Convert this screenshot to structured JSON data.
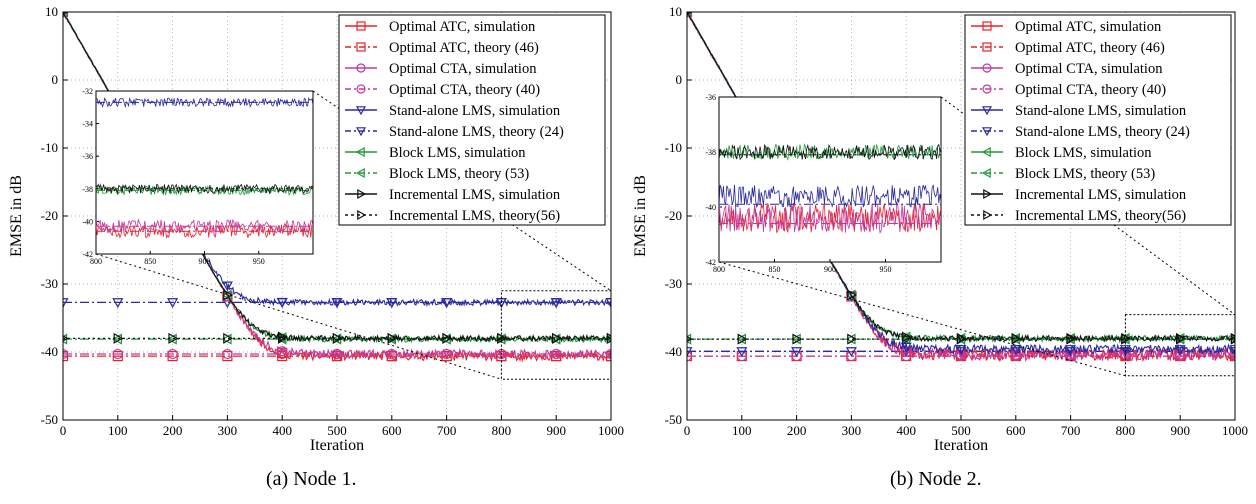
{
  "chart_data": [
    {
      "type": "line",
      "caption": "(a) Node 1.",
      "xlabel": "Iteration",
      "ylabel": "EMSE in dB",
      "xlim": [
        0,
        1000
      ],
      "ylim": [
        -50,
        10
      ],
      "xticks": [
        0,
        100,
        200,
        300,
        400,
        500,
        600,
        700,
        800,
        900,
        1000
      ],
      "yticks": [
        10,
        0,
        -10,
        -20,
        -30,
        -40,
        -50
      ],
      "grid": true,
      "legend_position": "top-right",
      "series": [
        {
          "name": "Optimal ATC, simulation",
          "color": "#e8202a",
          "dash": "solid",
          "marker": "square",
          "start": 10,
          "final": -40.6,
          "tau": 80,
          "delay": 0,
          "noise": 0.45
        },
        {
          "name": "Optimal ATC, theory (46)",
          "color": "#e8202a",
          "dash": "dashdot",
          "marker": "square",
          "final": -40.6,
          "flat": true
        },
        {
          "name": "Optimal CTA, simulation",
          "color": "#c23a9a",
          "dash": "solid",
          "marker": "circle",
          "start": 10,
          "final": -40.3,
          "tau": 80,
          "delay": 0,
          "noise": 0.45
        },
        {
          "name": "Optimal CTA, theory (40)",
          "color": "#c23a9a",
          "dash": "dashdot",
          "marker": "circle",
          "final": -40.3,
          "flat": true
        },
        {
          "name": "Stand-alone LMS, simulation",
          "color": "#2a2aa0",
          "dash": "solid",
          "marker": "triangle-down",
          "start": 10,
          "final": -32.7,
          "tau": 70,
          "delay": 0,
          "noise": 0.3
        },
        {
          "name": "Stand-alone LMS, theory (24)",
          "color": "#2a2aa0",
          "dash": "dashdot",
          "marker": "triangle-down",
          "final": -32.7,
          "flat": true
        },
        {
          "name": "Block LMS, simulation",
          "color": "#1f9a3a",
          "dash": "solid",
          "marker": "triangle-left",
          "start": 10,
          "final": -38.1,
          "tau": 85,
          "delay": 0,
          "noise": 0.3
        },
        {
          "name": "Block LMS, theory (53)",
          "color": "#1f9a3a",
          "dash": "dashdot",
          "marker": "triangle-left",
          "final": -38.1,
          "flat": true
        },
        {
          "name": "Incremental LMS, simulation",
          "color": "#111111",
          "dash": "solid",
          "marker": "triangle-right",
          "start": 10,
          "final": -38.0,
          "tau": 85,
          "delay": 0,
          "noise": 0.3
        },
        {
          "name": "Incremental LMS, theory(56)",
          "color": "#111111",
          "dash": "dotted",
          "marker": "triangle-right",
          "final": -38.0,
          "flat": true
        }
      ],
      "inset": {
        "xlim": [
          800,
          1000
        ],
        "ylim": [
          -42,
          -32
        ],
        "xticks": [
          800,
          850,
          900,
          950
        ],
        "yticks": [
          -32,
          -34,
          -36,
          -38,
          -40,
          -42
        ],
        "source_x": [
          800,
          1000
        ],
        "source_y": [
          -44,
          -31
        ]
      }
    },
    {
      "type": "line",
      "caption": "(b) Node 2.",
      "xlabel": "Iteration",
      "ylabel": "EMSE in dB",
      "xlim": [
        0,
        1000
      ],
      "ylim": [
        -50,
        10
      ],
      "xticks": [
        0,
        100,
        200,
        300,
        400,
        500,
        600,
        700,
        800,
        900,
        1000
      ],
      "yticks": [
        10,
        0,
        -10,
        -20,
        -30,
        -40,
        -50
      ],
      "grid": true,
      "legend_position": "top-right",
      "series": [
        {
          "name": "Optimal ATC, simulation",
          "color": "#e8202a",
          "dash": "solid",
          "marker": "square",
          "start": 10,
          "final": -40.4,
          "tau": 85,
          "delay": 0,
          "noise": 0.6
        },
        {
          "name": "Optimal ATC, theory (46)",
          "color": "#e8202a",
          "dash": "dashdot",
          "marker": "square",
          "final": -40.6,
          "flat": true
        },
        {
          "name": "Optimal CTA, simulation",
          "color": "#c23a9a",
          "dash": "solid",
          "marker": "circle",
          "start": 10,
          "final": -40.4,
          "tau": 85,
          "delay": 0,
          "noise": 0.6
        },
        {
          "name": "Optimal CTA, theory (40)",
          "color": "#c23a9a",
          "dash": "dashdot",
          "marker": "circle",
          "final": -40.6,
          "flat": true
        },
        {
          "name": "Stand-alone LMS, simulation",
          "color": "#2a2aa0",
          "dash": "solid",
          "marker": "triangle-down",
          "start": 10,
          "final": -39.6,
          "tau": 85,
          "delay": 0,
          "noise": 0.45
        },
        {
          "name": "Stand-alone LMS, theory (24)",
          "color": "#2a2aa0",
          "dash": "dashdot",
          "marker": "triangle-down",
          "final": -39.9,
          "flat": true
        },
        {
          "name": "Block LMS, simulation",
          "color": "#1f9a3a",
          "dash": "solid",
          "marker": "triangle-left",
          "start": 10,
          "final": -38.0,
          "tau": 85,
          "delay": 0,
          "noise": 0.3
        },
        {
          "name": "Block LMS, theory (53)",
          "color": "#1f9a3a",
          "dash": "dashdot",
          "marker": "triangle-left",
          "final": -38.1,
          "flat": true
        },
        {
          "name": "Incremental LMS, simulation",
          "color": "#111111",
          "dash": "solid",
          "marker": "triangle-right",
          "start": 10,
          "final": -38.0,
          "tau": 85,
          "delay": 0,
          "noise": 0.3
        },
        {
          "name": "Incremental LMS, theory(56)",
          "color": "#111111",
          "dash": "dotted",
          "marker": "triangle-right",
          "final": -38.1,
          "flat": true
        }
      ],
      "inset": {
        "xlim": [
          800,
          1000
        ],
        "ylim": [
          -42,
          -36
        ],
        "xticks": [
          800,
          850,
          900,
          950
        ],
        "yticks": [
          -36,
          -38,
          -40,
          -42
        ],
        "source_x": [
          800,
          1000
        ],
        "source_y": [
          -43.5,
          -34.5
        ]
      }
    }
  ]
}
